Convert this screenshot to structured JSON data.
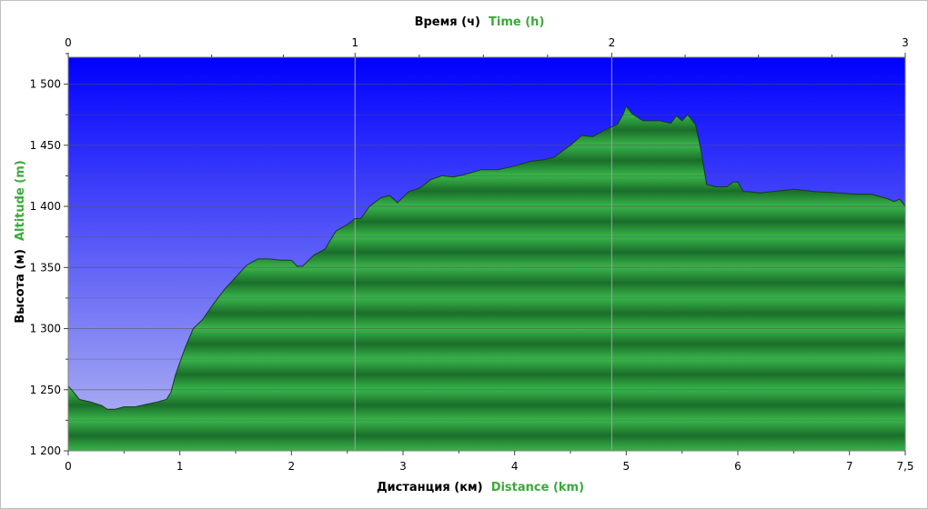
{
  "chart_data": {
    "type": "area",
    "top_axis": {
      "label_ru": "Время (ч)",
      "label_en": "Time (h)",
      "ticks": [
        {
          "value": 0,
          "label": "0",
          "distance": 0
        },
        {
          "value": 1,
          "label": "1",
          "distance": 2.57
        },
        {
          "value": 2,
          "label": "2",
          "distance": 4.87
        },
        {
          "value": 3,
          "label": "3",
          "distance": 7.5
        }
      ]
    },
    "x_axis": {
      "label_ru": "Дистанция (км)",
      "label_en": "Distance (km)",
      "range": [
        0,
        7.5
      ],
      "ticks": [
        {
          "value": 0,
          "label": "0"
        },
        {
          "value": 1,
          "label": "1"
        },
        {
          "value": 2,
          "label": "2"
        },
        {
          "value": 3,
          "label": "3"
        },
        {
          "value": 4,
          "label": "4"
        },
        {
          "value": 5,
          "label": "5"
        },
        {
          "value": 6,
          "label": "6"
        },
        {
          "value": 7,
          "label": "7"
        },
        {
          "value": 7.5,
          "label": "7,5"
        }
      ]
    },
    "y_axis": {
      "label_ru": "Высота (м)",
      "label_en": "Altitude (m)",
      "range": [
        1200,
        1522
      ],
      "ticks": [
        {
          "value": 1200,
          "label": "1 200"
        },
        {
          "value": 1250,
          "label": "1 250"
        },
        {
          "value": 1300,
          "label": "1 300"
        },
        {
          "value": 1350,
          "label": "1 350"
        },
        {
          "value": 1400,
          "label": "1 400"
        },
        {
          "value": 1450,
          "label": "1 450"
        },
        {
          "value": 1500,
          "label": "1 500"
        }
      ]
    },
    "grid": true,
    "colors": {
      "sky_top": "#0000ff",
      "sky_bottom": "#b8bcf0",
      "fill_light": "#39b54a",
      "fill_dark": "#1a6e2a",
      "outline": "#1a3a1a",
      "grid": "#555555",
      "english_label": "#3aaa3a"
    },
    "series": [
      {
        "x": [
          0,
          0.03,
          0.1,
          0.2,
          0.3,
          0.35,
          0.42,
          0.5,
          0.6,
          0.7,
          0.8,
          0.88,
          0.92,
          0.96,
          1.05,
          1.12,
          1.2,
          1.3,
          1.4,
          1.5,
          1.6,
          1.7,
          1.8,
          1.9,
          2.0,
          2.05,
          2.1,
          2.2,
          2.3,
          2.4,
          2.5,
          2.57,
          2.62,
          2.7,
          2.8,
          2.88,
          2.95,
          3.05,
          3.15,
          3.25,
          3.35,
          3.45,
          3.55,
          3.7,
          3.85,
          4.0,
          4.15,
          4.25,
          4.35,
          4.5,
          4.6,
          4.7,
          4.8,
          4.87,
          4.92,
          4.97,
          5.0,
          5.05,
          5.15,
          5.3,
          5.4,
          5.45,
          5.5,
          5.55,
          5.62,
          5.67,
          5.72,
          5.8,
          5.9,
          5.96,
          6.0,
          6.05,
          6.1,
          6.2,
          6.3,
          6.5,
          6.7,
          6.9,
          7.05,
          7.2,
          7.35,
          7.4,
          7.45,
          7.5
        ],
        "y": [
          1253,
          1250,
          1242,
          1240,
          1237,
          1234,
          1234,
          1236,
          1236,
          1238,
          1240,
          1242,
          1248,
          1262,
          1285,
          1300,
          1307,
          1320,
          1332,
          1342,
          1352,
          1357,
          1357,
          1356,
          1356,
          1351,
          1351,
          1360,
          1365,
          1380,
          1385,
          1390,
          1390,
          1400,
          1407,
          1409,
          1403,
          1412,
          1415,
          1422,
          1425,
          1424,
          1426,
          1430,
          1430,
          1433,
          1437,
          1438,
          1440,
          1450,
          1458,
          1457,
          1462,
          1465,
          1467,
          1475,
          1482,
          1476,
          1470,
          1470,
          1468,
          1474,
          1470,
          1475,
          1467,
          1446,
          1418,
          1416,
          1416,
          1420,
          1420,
          1412,
          1412,
          1411,
          1412,
          1414,
          1412,
          1411,
          1410,
          1410,
          1406,
          1404,
          1406,
          1400
        ]
      }
    ]
  }
}
